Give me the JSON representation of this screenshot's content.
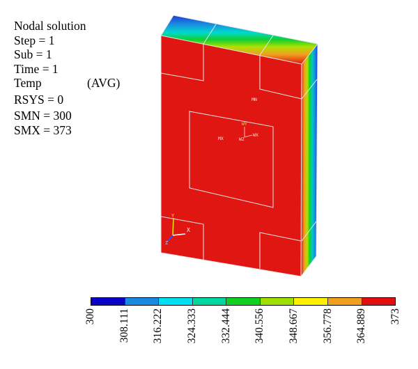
{
  "info": {
    "lines": [
      "Nodal solution",
      "Step = 1",
      "Sub = 1",
      "Time = 1",
      "Temp"
    ],
    "avg": "(AVG)",
    "rsys": "RSYS = 0",
    "smn": "SMN = 300",
    "smx": "SMX = 373"
  },
  "model_labels": {
    "mn": "MN",
    "mx": "MX",
    "wx": "WX",
    "wz": "WZ",
    "wy": "WY",
    "axis_x": "X",
    "axis_y": "Y",
    "axis_z": "Z"
  },
  "colors": {
    "face": "#e01612",
    "outline": "#f0f0f0"
  },
  "legend": {
    "colors": [
      "#0a00c8",
      "#1a8ae0",
      "#00e0f0",
      "#00d8a0",
      "#10d020",
      "#a0e000",
      "#fff000",
      "#f0a020",
      "#e01010"
    ],
    "ticks": [
      "300",
      "308.111",
      "316.222",
      "324.333",
      "332.444",
      "340.556",
      "348.667",
      "356.778",
      "364.889",
      "373"
    ]
  }
}
